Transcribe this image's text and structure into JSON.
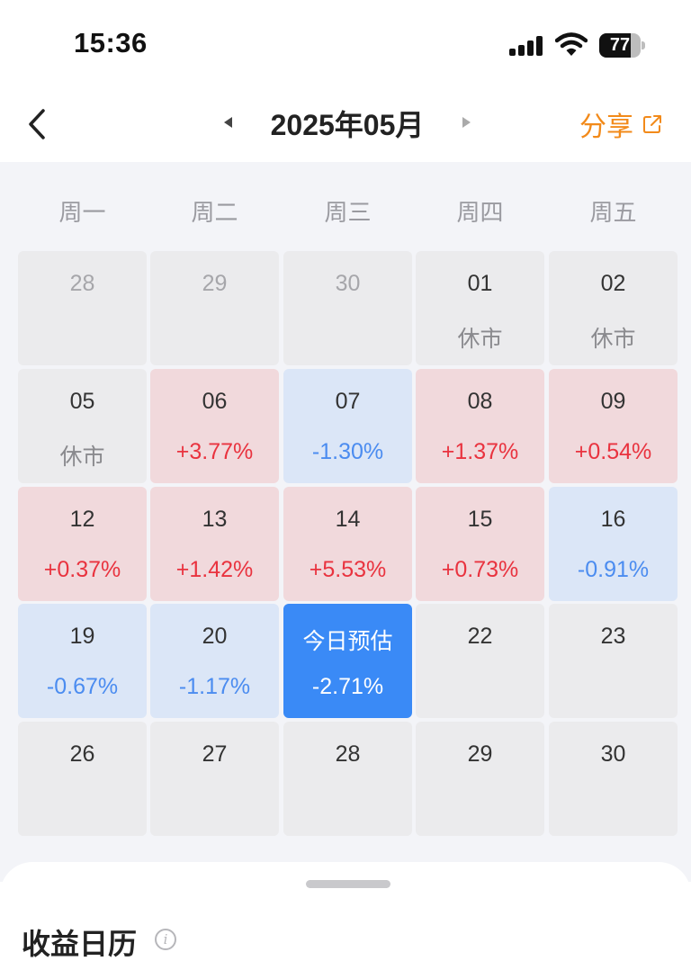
{
  "status_bar": {
    "time": "15:36",
    "battery": "77"
  },
  "header": {
    "month": "2025年05月",
    "share_label": "分享"
  },
  "weekdays": [
    "周一",
    "周二",
    "周三",
    "周四",
    "周五"
  ],
  "weeks": [
    [
      {
        "day": "28",
        "sub": "",
        "state": "gray",
        "muted": true
      },
      {
        "day": "29",
        "sub": "",
        "state": "gray",
        "muted": true
      },
      {
        "day": "30",
        "sub": "",
        "state": "gray",
        "muted": true
      },
      {
        "day": "01",
        "sub": "休市",
        "state": "gray",
        "kind": "rest"
      },
      {
        "day": "02",
        "sub": "休市",
        "state": "gray",
        "kind": "rest"
      }
    ],
    [
      {
        "day": "05",
        "sub": "休市",
        "state": "gray",
        "kind": "rest"
      },
      {
        "day": "06",
        "sub": "+3.77%",
        "state": "red",
        "kind": "up"
      },
      {
        "day": "07",
        "sub": "-1.30%",
        "state": "blue",
        "kind": "down"
      },
      {
        "day": "08",
        "sub": "+1.37%",
        "state": "red",
        "kind": "up"
      },
      {
        "day": "09",
        "sub": "+0.54%",
        "state": "red",
        "kind": "up"
      }
    ],
    [
      {
        "day": "12",
        "sub": "+0.37%",
        "state": "red",
        "kind": "up"
      },
      {
        "day": "13",
        "sub": "+1.42%",
        "state": "red",
        "kind": "up"
      },
      {
        "day": "14",
        "sub": "+5.53%",
        "state": "red",
        "kind": "up"
      },
      {
        "day": "15",
        "sub": "+0.73%",
        "state": "red",
        "kind": "up"
      },
      {
        "day": "16",
        "sub": "-0.91%",
        "state": "blue",
        "kind": "down"
      }
    ],
    [
      {
        "day": "19",
        "sub": "-0.67%",
        "state": "blue",
        "kind": "down"
      },
      {
        "day": "20",
        "sub": "-1.17%",
        "state": "blue",
        "kind": "down"
      },
      {
        "day": "今日预估",
        "sub": "-2.71%",
        "state": "today",
        "kind": "today"
      },
      {
        "day": "22",
        "sub": "",
        "state": "gray"
      },
      {
        "day": "23",
        "sub": "",
        "state": "gray"
      }
    ],
    [
      {
        "day": "26",
        "sub": "",
        "state": "gray"
      },
      {
        "day": "27",
        "sub": "",
        "state": "gray"
      },
      {
        "day": "28",
        "sub": "",
        "state": "gray"
      },
      {
        "day": "29",
        "sub": "",
        "state": "gray"
      },
      {
        "day": "30",
        "sub": "",
        "state": "gray"
      }
    ]
  ],
  "sheet": {
    "title": "收益日历",
    "info_icon": "i"
  },
  "colors": {
    "up": "#e9333f",
    "down": "#4b8cf0",
    "accent": "#f28a1a",
    "today": "#3a8af6"
  }
}
